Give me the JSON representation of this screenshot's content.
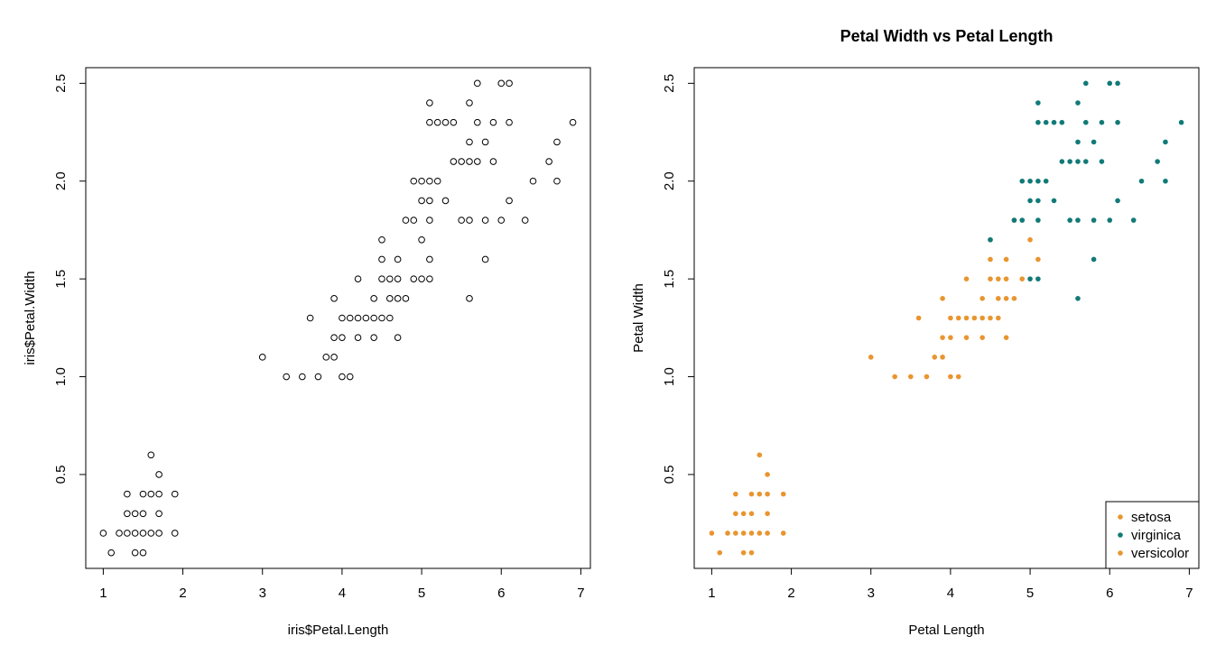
{
  "colors": {
    "setosa": "#e9952f",
    "versicolor": "#e9952f",
    "virginica": "#117a78"
  },
  "chart_data": [
    {
      "type": "scatter",
      "title": "",
      "xlabel": "iris$Petal.Length",
      "ylabel": "iris$Petal.Width",
      "xlim": [
        0.78,
        7.12
      ],
      "ylim": [
        0.02,
        2.58
      ],
      "xticks": [
        "1",
        "2",
        "3",
        "4",
        "5",
        "6",
        "7"
      ],
      "yticks": [
        "0.5",
        "1.0",
        "1.5",
        "2.0",
        "2.5"
      ],
      "grid": false,
      "marker": "open-circle",
      "series": [
        {
          "points": [
            [
              1.0,
              0.2
            ],
            [
              1.1,
              0.1
            ],
            [
              1.2,
              0.2
            ],
            [
              1.3,
              0.2
            ],
            [
              1.3,
              0.3
            ],
            [
              1.3,
              0.4
            ],
            [
              1.4,
              0.1
            ],
            [
              1.4,
              0.2
            ],
            [
              1.4,
              0.3
            ],
            [
              1.5,
              0.1
            ],
            [
              1.5,
              0.2
            ],
            [
              1.5,
              0.3
            ],
            [
              1.5,
              0.4
            ],
            [
              1.6,
              0.2
            ],
            [
              1.6,
              0.4
            ],
            [
              1.6,
              0.6
            ],
            [
              1.7,
              0.2
            ],
            [
              1.7,
              0.3
            ],
            [
              1.7,
              0.4
            ],
            [
              1.7,
              0.5
            ],
            [
              1.9,
              0.2
            ],
            [
              1.9,
              0.4
            ]
          ]
        },
        {
          "points": [
            [
              3.0,
              1.1
            ],
            [
              3.3,
              1.0
            ],
            [
              3.5,
              1.0
            ],
            [
              3.6,
              1.3
            ],
            [
              3.7,
              1.0
            ],
            [
              3.8,
              1.1
            ],
            [
              3.9,
              1.1
            ],
            [
              3.9,
              1.2
            ],
            [
              3.9,
              1.4
            ],
            [
              4.0,
              1.0
            ],
            [
              4.0,
              1.2
            ],
            [
              4.0,
              1.3
            ],
            [
              4.1,
              1.0
            ],
            [
              4.1,
              1.3
            ],
            [
              4.2,
              1.2
            ],
            [
              4.2,
              1.3
            ],
            [
              4.2,
              1.5
            ],
            [
              4.3,
              1.3
            ],
            [
              4.4,
              1.2
            ],
            [
              4.4,
              1.3
            ],
            [
              4.4,
              1.4
            ],
            [
              4.5,
              1.3
            ],
            [
              4.5,
              1.5
            ],
            [
              4.5,
              1.6
            ],
            [
              4.5,
              1.7
            ],
            [
              4.6,
              1.3
            ],
            [
              4.6,
              1.4
            ],
            [
              4.6,
              1.5
            ],
            [
              4.7,
              1.2
            ],
            [
              4.7,
              1.4
            ],
            [
              4.7,
              1.5
            ],
            [
              4.7,
              1.6
            ],
            [
              4.8,
              1.4
            ],
            [
              4.8,
              1.8
            ],
            [
              4.9,
              1.5
            ],
            [
              4.9,
              1.8
            ],
            [
              4.9,
              2.0
            ],
            [
              5.0,
              1.5
            ],
            [
              5.0,
              1.7
            ],
            [
              5.0,
              1.9
            ],
            [
              5.0,
              2.0
            ],
            [
              5.1,
              1.5
            ],
            [
              5.1,
              1.6
            ],
            [
              5.1,
              1.8
            ],
            [
              5.1,
              1.9
            ],
            [
              5.1,
              2.0
            ],
            [
              5.1,
              2.3
            ],
            [
              5.1,
              2.4
            ],
            [
              5.2,
              2.0
            ],
            [
              5.2,
              2.3
            ],
            [
              5.3,
              1.9
            ],
            [
              5.3,
              2.3
            ],
            [
              5.4,
              2.1
            ],
            [
              5.4,
              2.3
            ],
            [
              5.5,
              1.8
            ],
            [
              5.5,
              2.1
            ],
            [
              5.6,
              1.4
            ],
            [
              5.6,
              1.8
            ],
            [
              5.6,
              2.1
            ],
            [
              5.6,
              2.2
            ],
            [
              5.6,
              2.4
            ],
            [
              5.7,
              2.1
            ],
            [
              5.7,
              2.3
            ],
            [
              5.7,
              2.5
            ],
            [
              5.8,
              1.6
            ],
            [
              5.8,
              1.8
            ],
            [
              5.8,
              2.2
            ],
            [
              5.9,
              2.1
            ],
            [
              5.9,
              2.3
            ],
            [
              6.0,
              1.8
            ],
            [
              6.0,
              2.5
            ],
            [
              6.1,
              1.9
            ],
            [
              6.1,
              2.3
            ],
            [
              6.1,
              2.5
            ],
            [
              6.3,
              1.8
            ],
            [
              6.4,
              2.0
            ],
            [
              6.6,
              2.1
            ],
            [
              6.7,
              2.0
            ],
            [
              6.7,
              2.2
            ],
            [
              6.9,
              2.3
            ]
          ]
        }
      ]
    },
    {
      "type": "scatter",
      "title": "Petal Width vs Petal Length",
      "xlabel": "Petal Length",
      "ylabel": "Petal Width",
      "xlim": [
        0.78,
        7.12
      ],
      "ylim": [
        0.02,
        2.58
      ],
      "xticks": [
        "1",
        "2",
        "3",
        "4",
        "5",
        "6",
        "7"
      ],
      "yticks": [
        "0.5",
        "1.0",
        "1.5",
        "2.0",
        "2.5"
      ],
      "grid": false,
      "marker": "filled-circle",
      "legend": {
        "position": "bottom-right",
        "entries": [
          "setosa",
          "virginica",
          "versicolor"
        ]
      },
      "series": [
        {
          "name": "setosa",
          "color": "#e9952f",
          "points": [
            [
              1.0,
              0.2
            ],
            [
              1.1,
              0.1
            ],
            [
              1.2,
              0.2
            ],
            [
              1.3,
              0.2
            ],
            [
              1.3,
              0.3
            ],
            [
              1.3,
              0.4
            ],
            [
              1.4,
              0.1
            ],
            [
              1.4,
              0.2
            ],
            [
              1.4,
              0.3
            ],
            [
              1.5,
              0.1
            ],
            [
              1.5,
              0.2
            ],
            [
              1.5,
              0.3
            ],
            [
              1.5,
              0.4
            ],
            [
              1.6,
              0.2
            ],
            [
              1.6,
              0.4
            ],
            [
              1.6,
              0.6
            ],
            [
              1.7,
              0.2
            ],
            [
              1.7,
              0.3
            ],
            [
              1.7,
              0.4
            ],
            [
              1.7,
              0.5
            ],
            [
              1.9,
              0.2
            ],
            [
              1.9,
              0.4
            ]
          ]
        },
        {
          "name": "versicolor",
          "color": "#e9952f",
          "points": [
            [
              3.0,
              1.1
            ],
            [
              3.3,
              1.0
            ],
            [
              3.5,
              1.0
            ],
            [
              3.6,
              1.3
            ],
            [
              3.7,
              1.0
            ],
            [
              3.8,
              1.1
            ],
            [
              3.9,
              1.1
            ],
            [
              3.9,
              1.2
            ],
            [
              3.9,
              1.4
            ],
            [
              4.0,
              1.0
            ],
            [
              4.0,
              1.2
            ],
            [
              4.0,
              1.3
            ],
            [
              4.1,
              1.0
            ],
            [
              4.1,
              1.3
            ],
            [
              4.2,
              1.2
            ],
            [
              4.2,
              1.3
            ],
            [
              4.2,
              1.5
            ],
            [
              4.3,
              1.3
            ],
            [
              4.4,
              1.2
            ],
            [
              4.4,
              1.3
            ],
            [
              4.4,
              1.4
            ],
            [
              4.5,
              1.3
            ],
            [
              4.5,
              1.5
            ],
            [
              4.5,
              1.6
            ],
            [
              4.5,
              1.7
            ],
            [
              4.6,
              1.3
            ],
            [
              4.6,
              1.4
            ],
            [
              4.6,
              1.5
            ],
            [
              4.7,
              1.2
            ],
            [
              4.7,
              1.4
            ],
            [
              4.7,
              1.5
            ],
            [
              4.7,
              1.6
            ],
            [
              4.8,
              1.4
            ],
            [
              4.8,
              1.8
            ],
            [
              4.9,
              1.5
            ],
            [
              5.0,
              1.7
            ],
            [
              5.1,
              1.6
            ]
          ]
        },
        {
          "name": "virginica",
          "color": "#117a78",
          "points": [
            [
              4.5,
              1.7
            ],
            [
              4.8,
              1.8
            ],
            [
              4.9,
              1.8
            ],
            [
              4.9,
              2.0
            ],
            [
              5.0,
              1.5
            ],
            [
              5.0,
              1.9
            ],
            [
              5.0,
              2.0
            ],
            [
              5.1,
              1.5
            ],
            [
              5.1,
              1.8
            ],
            [
              5.1,
              1.9
            ],
            [
              5.1,
              2.0
            ],
            [
              5.1,
              2.3
            ],
            [
              5.1,
              2.4
            ],
            [
              5.2,
              2.0
            ],
            [
              5.2,
              2.3
            ],
            [
              5.3,
              1.9
            ],
            [
              5.3,
              2.3
            ],
            [
              5.4,
              2.1
            ],
            [
              5.4,
              2.3
            ],
            [
              5.5,
              1.8
            ],
            [
              5.5,
              2.1
            ],
            [
              5.6,
              1.4
            ],
            [
              5.6,
              1.8
            ],
            [
              5.6,
              2.1
            ],
            [
              5.6,
              2.2
            ],
            [
              5.6,
              2.4
            ],
            [
              5.7,
              2.1
            ],
            [
              5.7,
              2.3
            ],
            [
              5.7,
              2.5
            ],
            [
              5.8,
              1.6
            ],
            [
              5.8,
              1.8
            ],
            [
              5.8,
              2.2
            ],
            [
              5.9,
              2.1
            ],
            [
              5.9,
              2.3
            ],
            [
              6.0,
              1.8
            ],
            [
              6.0,
              2.5
            ],
            [
              6.1,
              1.9
            ],
            [
              6.1,
              2.3
            ],
            [
              6.1,
              2.5
            ],
            [
              6.3,
              1.8
            ],
            [
              6.4,
              2.0
            ],
            [
              6.6,
              2.1
            ],
            [
              6.7,
              2.0
            ],
            [
              6.7,
              2.2
            ],
            [
              6.9,
              2.3
            ]
          ]
        }
      ]
    }
  ]
}
